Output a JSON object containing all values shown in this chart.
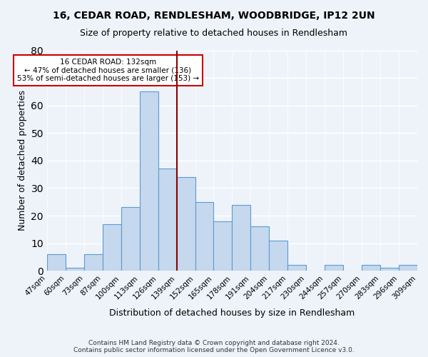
{
  "title1": "16, CEDAR ROAD, RENDLESHAM, WOODBRIDGE, IP12 2UN",
  "title2": "Size of property relative to detached houses in Rendlesham",
  "xlabel": "Distribution of detached houses by size in Rendlesham",
  "ylabel": "Number of detached properties",
  "footnote": "Contains HM Land Registry data © Crown copyright and database right 2024.\nContains public sector information licensed under the Open Government Licence v3.0.",
  "bin_labels": [
    "47sqm",
    "60sqm",
    "73sqm",
    "87sqm",
    "100sqm",
    "113sqm",
    "126sqm",
    "139sqm",
    "152sqm",
    "165sqm",
    "178sqm",
    "191sqm",
    "204sqm",
    "217sqm",
    "230sqm",
    "244sqm",
    "257sqm",
    "270sqm",
    "283sqm",
    "296sqm",
    "309sqm"
  ],
  "bar_values": [
    6,
    1,
    6,
    17,
    23,
    65,
    37,
    34,
    25,
    18,
    24,
    16,
    11,
    2,
    0,
    2,
    0,
    2,
    1,
    2
  ],
  "bar_color": "#c5d8ed",
  "bar_edge_color": "#5b9bd5",
  "vline_color": "#8b0000",
  "annotation_title": "16 CEDAR ROAD: 132sqm",
  "annotation_line1": "← 47% of detached houses are smaller (136)",
  "annotation_line2": "53% of semi-detached houses are larger (153) →",
  "annotation_box_color": "#ffffff",
  "annotation_box_edge": "#cc0000",
  "ylim": [
    0,
    80
  ],
  "yticks": [
    0,
    10,
    20,
    30,
    40,
    50,
    60,
    70,
    80
  ],
  "background_color": "#eef3f9",
  "plot_bg_color": "#eef3f9",
  "grid_color": "#ffffff"
}
